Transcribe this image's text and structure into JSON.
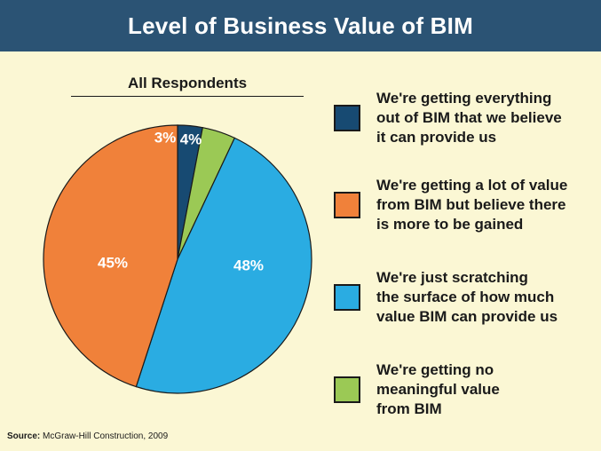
{
  "header": {
    "title": "Level of Business Value of BIM"
  },
  "chart_data": {
    "type": "pie",
    "title": "Level of Business Value of BIM",
    "subtitle": "All Respondents",
    "slices": [
      {
        "label": "We're getting everything\nout of BIM that we believe\nit can provide us",
        "value": 3,
        "display": "3%",
        "color": "#174a72"
      },
      {
        "label": "We're getting no\nmeaningful value\nfrom BIM",
        "value": 4,
        "display": "4%",
        "color": "#9bc955"
      },
      {
        "label": "We're just scratching\nthe surface of how much\nvalue BIM can provide us",
        "value": 48,
        "display": "48%",
        "color": "#2aace2"
      },
      {
        "label": "We're getting a lot of value\nfrom BIM but believe there\nis more to be gained",
        "value": 45,
        "display": "45%",
        "color": "#f0813a"
      }
    ]
  },
  "legend": [
    {
      "label": "We're getting everything\nout of BIM that we believe\nit can provide us",
      "color": "#174a72"
    },
    {
      "label": "We're getting a lot of value\nfrom BIM but believe there\nis more to be gained",
      "color": "#f0813a"
    },
    {
      "label": "We're just scratching\nthe surface of how much\nvalue BIM can provide us",
      "color": "#2aace2"
    },
    {
      "label": "We're getting no\nmeaningful value\nfrom BIM",
      "color": "#9bc955"
    }
  ],
  "source": {
    "label": "Source:",
    "text": "McGraw-Hill Construction, 2009"
  }
}
